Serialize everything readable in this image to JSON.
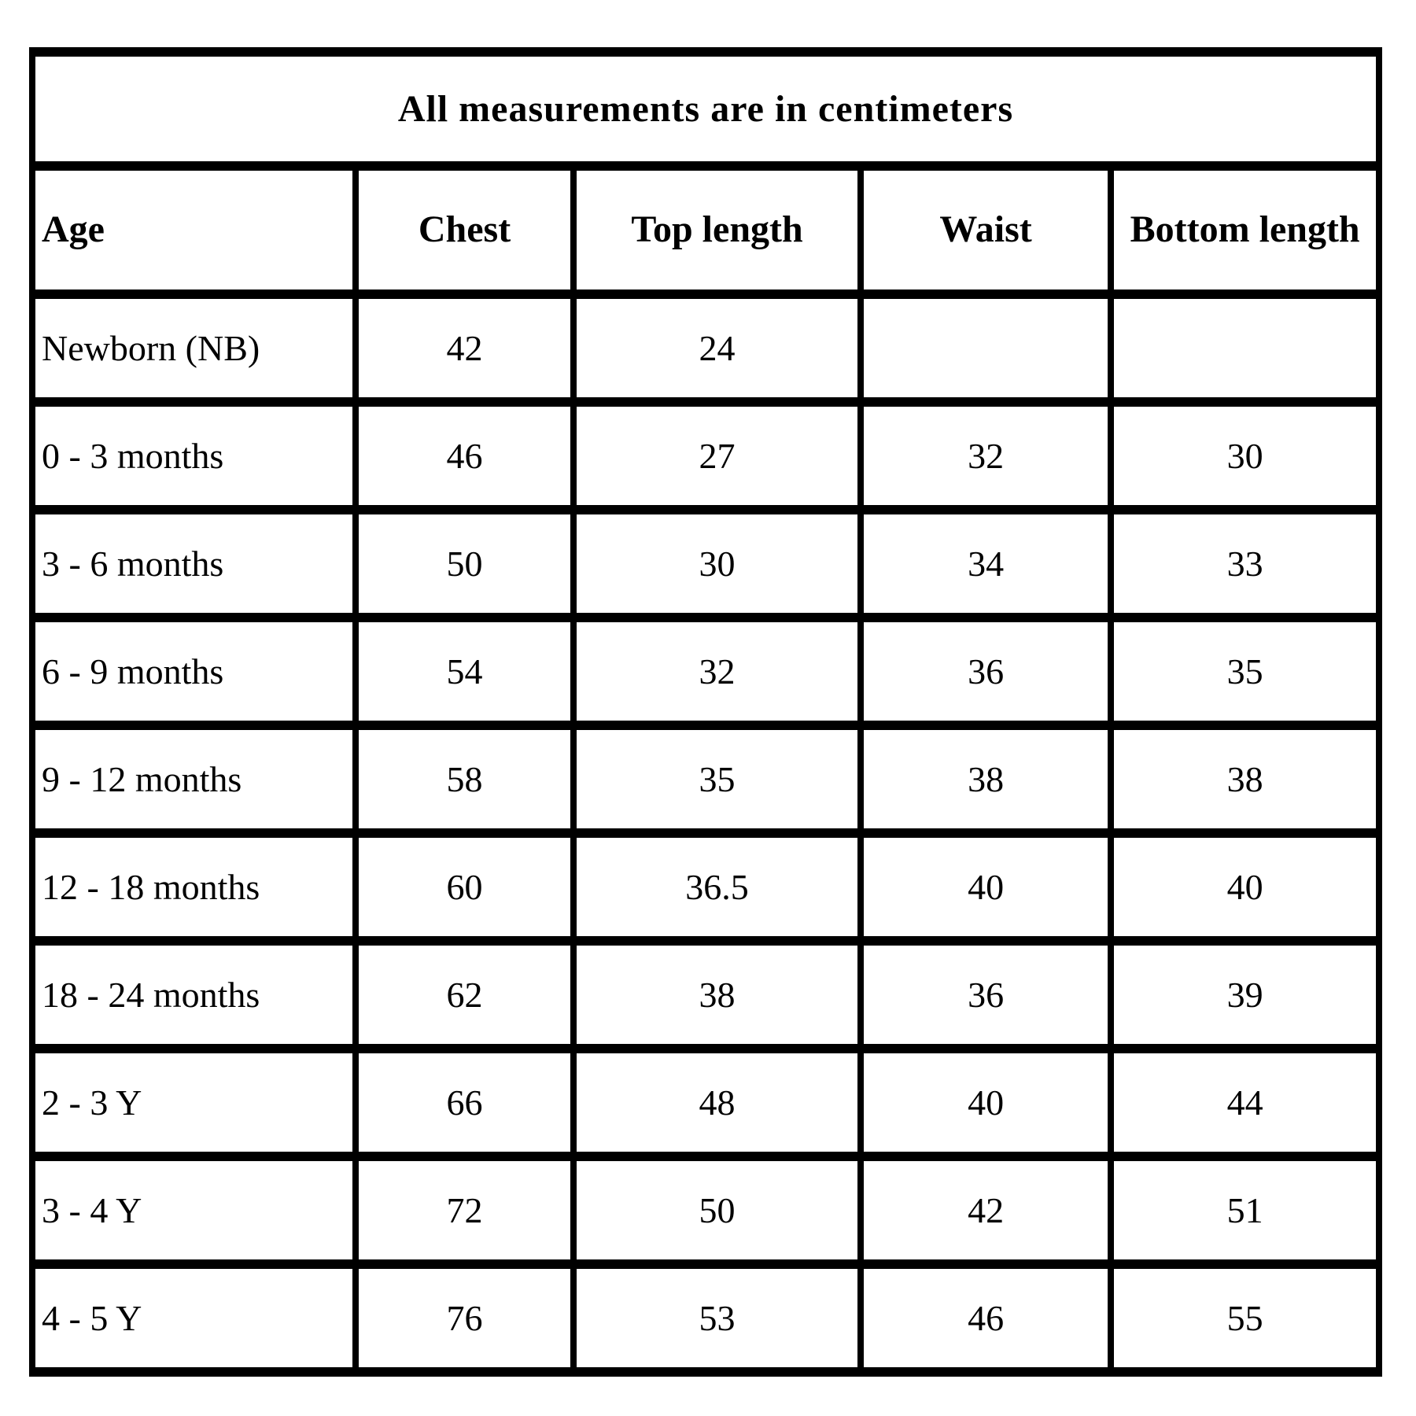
{
  "chart_data": {
    "type": "table",
    "title": "All measurements are in centimeters",
    "units": "centimeters",
    "columns": [
      "Age",
      "Chest",
      "Top length",
      "Waist",
      "Bottom length"
    ],
    "rows": [
      [
        "Newborn (NB)",
        "42",
        "24",
        "",
        ""
      ],
      [
        "0 - 3 months",
        "46",
        "27",
        "32",
        "30"
      ],
      [
        "3 - 6 months",
        "50",
        "30",
        "34",
        "33"
      ],
      [
        "6 - 9 months",
        "54",
        "32",
        "36",
        "35"
      ],
      [
        "9 - 12 months",
        "58",
        "35",
        "38",
        "38"
      ],
      [
        "12 - 18 months",
        "60",
        "36.5",
        "40",
        "40"
      ],
      [
        "18 - 24 months",
        "62",
        "38",
        "36",
        "39"
      ],
      [
        "2 - 3 Y",
        "66",
        "48",
        "40",
        "44"
      ],
      [
        "3 - 4 Y",
        "72",
        "50",
        "42",
        "51"
      ],
      [
        "4 - 5 Y",
        "76",
        "53",
        "46",
        "55"
      ]
    ],
    "layout": {
      "grid": "on",
      "border_color": "#000000",
      "background_color": "#ffffff",
      "text_color": "#000000"
    }
  }
}
